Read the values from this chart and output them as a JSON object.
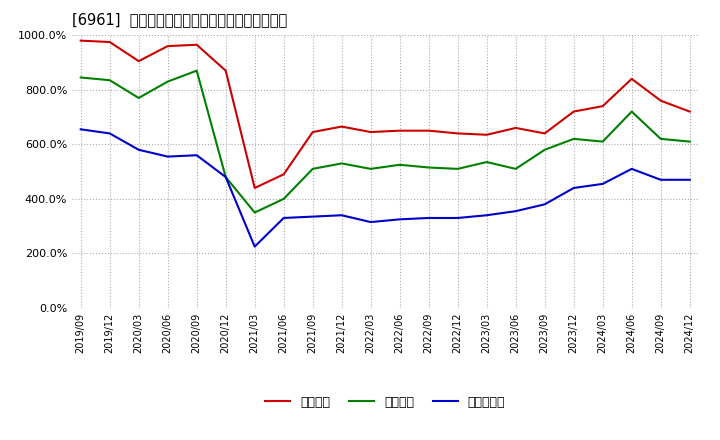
{
  "title": "[6961]  流動比率、当座比率、現預金比率の推移",
  "x_labels": [
    "2019/09",
    "2019/12",
    "2020/03",
    "2020/06",
    "2020/09",
    "2020/12",
    "2021/03",
    "2021/06",
    "2021/09",
    "2021/12",
    "2022/03",
    "2022/06",
    "2022/09",
    "2022/12",
    "2023/03",
    "2023/06",
    "2023/09",
    "2023/12",
    "2024/03",
    "2024/06",
    "2024/09",
    "2024/12"
  ],
  "ryudo": [
    980,
    975,
    905,
    960,
    965,
    870,
    440,
    490,
    645,
    665,
    645,
    650,
    650,
    640,
    635,
    660,
    640,
    720,
    740,
    840,
    760,
    720
  ],
  "toza": [
    845,
    835,
    770,
    830,
    870,
    480,
    350,
    400,
    510,
    530,
    510,
    525,
    515,
    510,
    535,
    510,
    580,
    620,
    610,
    720,
    620,
    610
  ],
  "genkin": [
    655,
    640,
    580,
    555,
    560,
    480,
    225,
    330,
    335,
    340,
    315,
    325,
    330,
    330,
    340,
    355,
    380,
    440,
    455,
    510,
    470,
    470
  ],
  "ryudo_color": "#cc0000",
  "toza_color": "#008000",
  "genkin_color": "#0000cc",
  "legend_ryudo": "流動比率",
  "legend_toza": "当座比率",
  "legend_genkin": "現預金比率",
  "ylim": [
    0,
    1000
  ],
  "yticks": [
    0,
    200,
    400,
    600,
    800,
    1000
  ],
  "bg_color": "#ffffff",
  "grid_color": "#aaaaaa"
}
